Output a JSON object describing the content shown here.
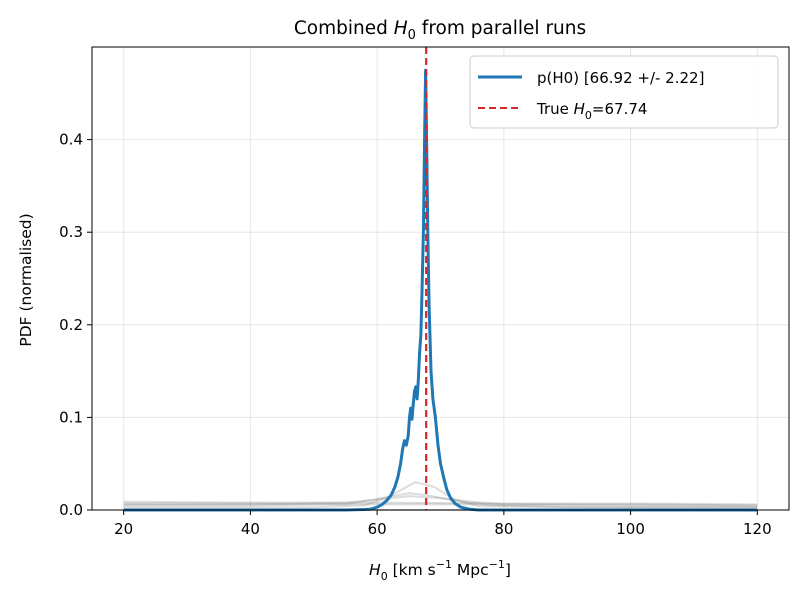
{
  "chart_data": {
    "type": "line",
    "title": {
      "pre": "Combined ",
      "sym": "H",
      "sub": "0",
      "post": " from parallel runs"
    },
    "xlabel": {
      "sym": "H",
      "sub": "0",
      "text1": " [km s",
      "exp1": "−1",
      "text2": " Mpc",
      "exp2": "−1",
      "text3": "]"
    },
    "ylabel": "PDF (normalised)",
    "xlim": [
      15,
      125
    ],
    "ylim": [
      0,
      0.5
    ],
    "xticks": [
      20,
      40,
      60,
      80,
      100,
      120
    ],
    "yticks": [
      0.0,
      0.1,
      0.2,
      0.3,
      0.4
    ],
    "ytick_labels": [
      "0.0",
      "0.1",
      "0.2",
      "0.3",
      "0.4"
    ],
    "grid": true,
    "legend_position": "top-right",
    "series": [
      {
        "name": "p(H0) [66.92 +/- 2.22]",
        "color": "#1f77b4",
        "style": "solid",
        "x": [
          20,
          40,
          55,
          58,
          59,
          60,
          60.8,
          61.5,
          62.2,
          62.8,
          63.3,
          63.7,
          64.0,
          64.3,
          64.6,
          64.9,
          65.1,
          65.3,
          65.5,
          65.7,
          65.9,
          66.1,
          66.3,
          66.5,
          66.7,
          66.9,
          67.1,
          67.3,
          67.5,
          67.65,
          67.8,
          68.0,
          68.2,
          68.5,
          68.8,
          69.2,
          69.6,
          70.0,
          70.5,
          71.0,
          71.6,
          72.3,
          73.2,
          74.5,
          76,
          80,
          100,
          120
        ],
        "y": [
          0,
          0,
          0,
          0.0005,
          0.001,
          0.003,
          0.006,
          0.01,
          0.016,
          0.025,
          0.036,
          0.05,
          0.065,
          0.075,
          0.07,
          0.08,
          0.1,
          0.11,
          0.098,
          0.115,
          0.128,
          0.133,
          0.12,
          0.14,
          0.17,
          0.19,
          0.24,
          0.3,
          0.41,
          0.475,
          0.4,
          0.3,
          0.22,
          0.15,
          0.12,
          0.1,
          0.07,
          0.05,
          0.035,
          0.022,
          0.013,
          0.007,
          0.003,
          0.001,
          0,
          0,
          0,
          0
        ]
      },
      {
        "name": "True H0=67.74",
        "label": {
          "pre": "True ",
          "sym": "H",
          "sub": "0",
          "post": "=67.74"
        },
        "color": "#d62728",
        "style": "dashed",
        "x_value": 67.74
      }
    ],
    "background_runs": [
      {
        "x": [
          20,
          40,
          60,
          80,
          100,
          120
        ],
        "y": [
          0.009,
          0.008,
          0.008,
          0.007,
          0.007,
          0.006
        ]
      },
      {
        "x": [
          20,
          40,
          60,
          80,
          100,
          120
        ],
        "y": [
          0.007,
          0.007,
          0.006,
          0.006,
          0.006,
          0.005
        ]
      },
      {
        "x": [
          20,
          40,
          55,
          60,
          65,
          70,
          75,
          80,
          100,
          120
        ],
        "y": [
          0.006,
          0.006,
          0.008,
          0.011,
          0.015,
          0.013,
          0.009,
          0.006,
          0.005,
          0.004
        ]
      },
      {
        "x": [
          20,
          40,
          55,
          60,
          65,
          68,
          72,
          78,
          90,
          120
        ],
        "y": [
          0.005,
          0.005,
          0.006,
          0.012,
          0.018,
          0.016,
          0.01,
          0.005,
          0.003,
          0.003
        ]
      },
      {
        "x": [
          20,
          50,
          58,
          62,
          66,
          69,
          72,
          76,
          120
        ],
        "y": [
          0.003,
          0.003,
          0.005,
          0.015,
          0.03,
          0.025,
          0.012,
          0.004,
          0.002
        ]
      }
    ]
  }
}
